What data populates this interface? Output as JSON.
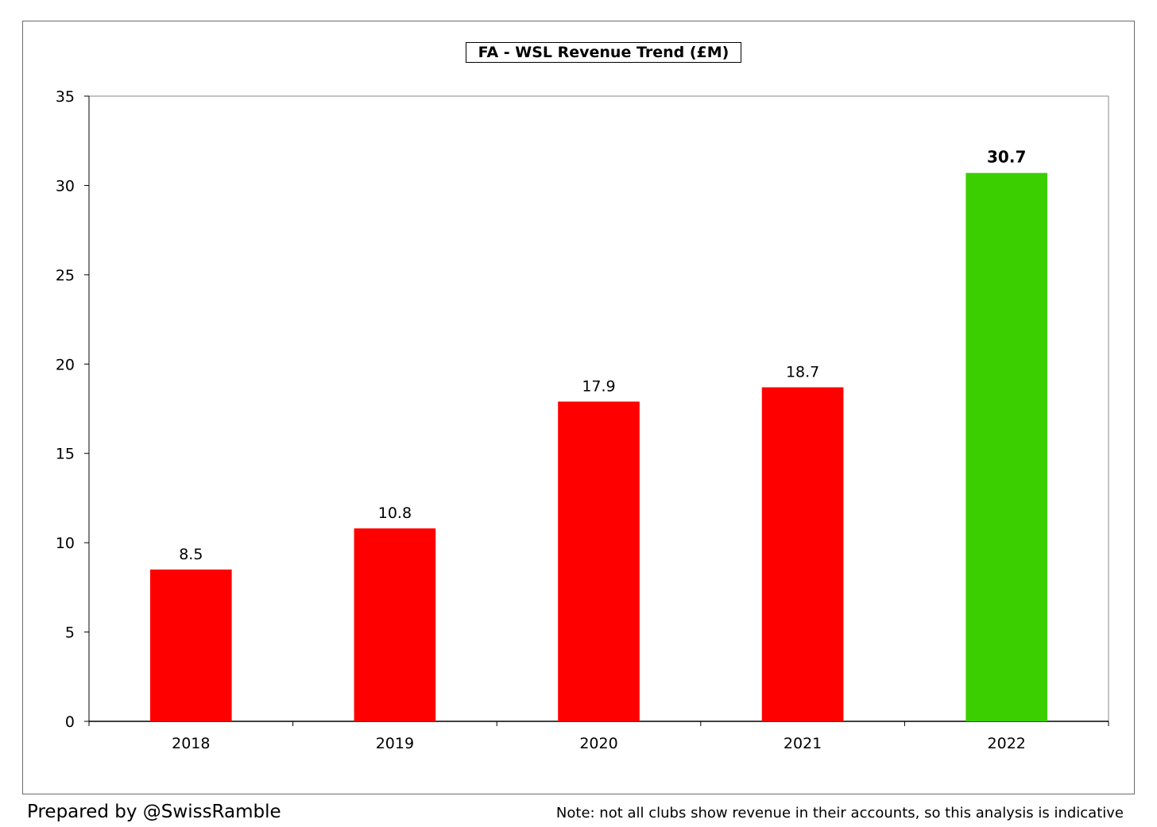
{
  "chart_data": {
    "type": "bar",
    "title": "FA - WSL Revenue Trend (£M)",
    "xlabel": "",
    "ylabel": "",
    "categories": [
      "2018",
      "2019",
      "2020",
      "2021",
      "2022"
    ],
    "values": [
      8.5,
      10.8,
      17.9,
      18.7,
      30.7
    ],
    "data_labels": [
      "8.5",
      "10.8",
      "17.9",
      "18.7",
      "30.7"
    ],
    "highlight_index": 4,
    "ylim": [
      0,
      35
    ],
    "yticks": [
      0,
      5,
      10,
      15,
      20,
      25,
      30,
      35
    ],
    "grid": false,
    "legend": "none",
    "colors": {
      "bar": "#ff0000",
      "highlight_bar": "#3ccf00"
    }
  },
  "footer": {
    "credit": "Prepared by @SwissRamble",
    "note": "Note: not all clubs show revenue in their accounts, so this analysis is indicative"
  }
}
